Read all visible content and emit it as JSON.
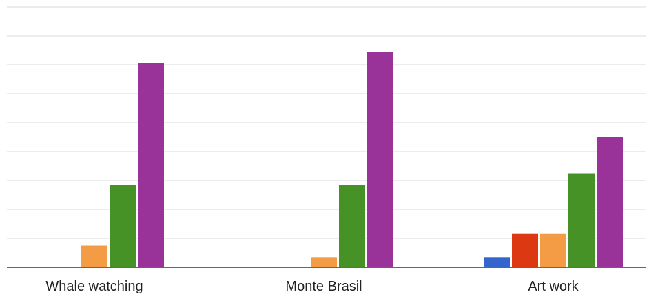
{
  "chart_data": {
    "type": "bar",
    "categories": [
      "Whale watching",
      "Monte Brasil",
      "Art work"
    ],
    "series": [
      {
        "color": "#3366cc",
        "values": [
          0,
          0,
          3.5
        ]
      },
      {
        "color": "#dc3912",
        "values": [
          0,
          0,
          11.5
        ]
      },
      {
        "color": "#f39c45",
        "values": [
          7.5,
          3.5,
          11.5
        ]
      },
      {
        "color": "#479226",
        "values": [
          28.5,
          28.5,
          32.5
        ]
      },
      {
        "color": "#993399",
        "values": [
          70.5,
          74.5,
          45
        ]
      }
    ],
    "ylim": [
      0,
      95
    ],
    "grid": true,
    "legend": "none"
  }
}
